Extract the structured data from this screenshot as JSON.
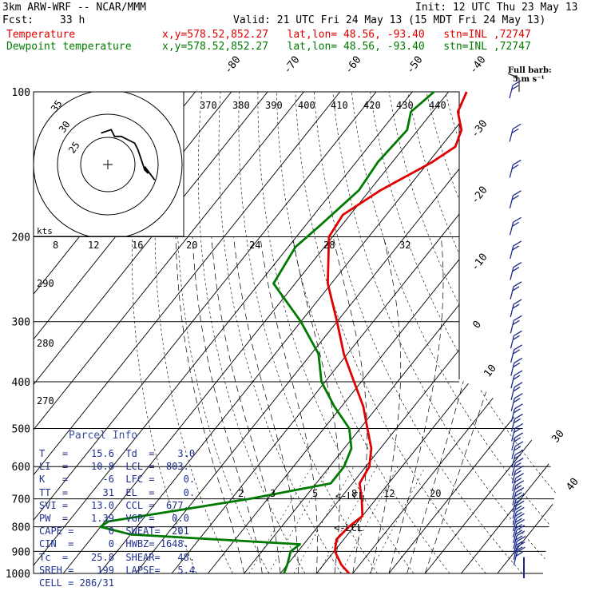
{
  "header": {
    "model": "3km ARW-WRF -- NCAR/MMM",
    "init": "Init: 12 UTC Thu 23 May 13",
    "fcst_label": "Fcst:",
    "fcst_value": "33 h",
    "valid": "Valid: 21 UTC Fri 24 May 13 (15 MDT Fri 24 May 13)"
  },
  "legend": [
    {
      "name": "Temperature",
      "info": "x,y=578.52,852.27   lat,lon= 48.56, -93.40   stn=INL ,72747",
      "color": "#e00000"
    },
    {
      "name": "Dewpoint temperature",
      "info": "x,y=578.52,852.27   lat,lon= 48.56, -93.40   stn=INL ,72747",
      "color": "#007a00"
    }
  ],
  "full_barb": {
    "line1": "Full barb:",
    "line2": "5 m s⁻¹"
  },
  "hodo": {
    "ring_labels": [
      "35",
      "30",
      "25"
    ],
    "kts": "kts"
  },
  "mixing_ratio_labels": [
    "2",
    "3",
    "5",
    "8",
    "12",
    "20"
  ],
  "lcl_labels": [
    "<-LCL",
    "<-LCL"
  ],
  "parcel_info": {
    "title": "Parcel Info",
    "rows": [
      "T   =    15.6  Td  =    3.0",
      "LI  =    10.8  LCL =  803.",
      "K   =      -6  LFC =     0.",
      "TT  =      31  EL  =     0.",
      "SVI =    13.0  CCL =  677.",
      "PW  =    1.39  VGP =   0.0",
      "CAPE =      0  SWEAT=  201",
      "CIN  =      0  HWBZ= 1648.",
      "Tc  =    25.8  SHEAR=   48.",
      "SREH =    199  LAPSE=   5.4",
      "CELL = 286/31"
    ]
  },
  "chart_data": {
    "type": "line",
    "title": "",
    "xlabel": "",
    "ylabel": "",
    "pressure_levels": [
      100,
      200,
      300,
      400,
      500,
      600,
      700,
      800,
      900,
      1000
    ],
    "isotherm_labels": [
      -80,
      -70,
      -60,
      -50,
      -40,
      -30,
      -20,
      -10,
      0,
      10,
      30,
      40
    ],
    "theta_labels": [
      370,
      380,
      390,
      400,
      410,
      420,
      430,
      440
    ],
    "theta_side_labels": [
      290,
      280,
      270
    ],
    "hodo_axis_labels": [
      8,
      12,
      16,
      20,
      24,
      28,
      32
    ],
    "series": [
      {
        "name": "Temperature",
        "color": "#e00000",
        "points": [
          [
            1000,
            19
          ],
          [
            960,
            15
          ],
          [
            900,
            10.2
          ],
          [
            850,
            8
          ],
          [
            800,
            8.6
          ],
          [
            760,
            10
          ],
          [
            700,
            6
          ],
          [
            650,
            2
          ],
          [
            600,
            1
          ],
          [
            550,
            -2.5
          ],
          [
            500,
            -8
          ],
          [
            450,
            -14
          ],
          [
            400,
            -22
          ],
          [
            350,
            -31
          ],
          [
            300,
            -40
          ],
          [
            250,
            -51
          ],
          [
            200,
            -61
          ],
          [
            180,
            -62
          ],
          [
            160,
            -57
          ],
          [
            140,
            -49
          ],
          [
            130,
            -46
          ],
          [
            120,
            -48
          ],
          [
            110,
            -53
          ],
          [
            100,
            -55
          ]
        ]
      },
      {
        "name": "Dewpoint temperature",
        "color": "#007a00",
        "points": [
          [
            1000,
            1
          ],
          [
            960,
            0
          ],
          [
            900,
            -2
          ],
          [
            870,
            -1
          ],
          [
            830,
            -50
          ],
          [
            800,
            -60
          ],
          [
            780,
            -59
          ],
          [
            700,
            -25
          ],
          [
            650,
            -6
          ],
          [
            600,
            -6
          ],
          [
            550,
            -8
          ],
          [
            500,
            -13
          ],
          [
            450,
            -22
          ],
          [
            400,
            -31
          ],
          [
            350,
            -38
          ],
          [
            300,
            -50
          ],
          [
            250,
            -66
          ],
          [
            210,
            -68
          ],
          [
            190,
            -66
          ],
          [
            160,
            -63
          ],
          [
            140,
            -64
          ],
          [
            120,
            -63
          ],
          [
            110,
            -66
          ],
          [
            100,
            -64
          ]
        ]
      }
    ],
    "hodograph": {
      "rings_kts": [
        25,
        30,
        35
      ],
      "uv_kts": [
        [
          -2,
          7
        ],
        [
          1,
          8
        ],
        [
          2,
          6
        ],
        [
          4,
          6
        ],
        [
          6,
          5
        ],
        [
          8,
          4
        ],
        [
          9,
          2
        ],
        [
          10,
          -1
        ],
        [
          11,
          -4
        ],
        [
          12,
          -5
        ],
        [
          11,
          -3
        ],
        [
          14,
          -7
        ]
      ]
    },
    "wind_barbs": {
      "count": 40,
      "pressure_range": [
        100,
        1000
      ]
    }
  }
}
